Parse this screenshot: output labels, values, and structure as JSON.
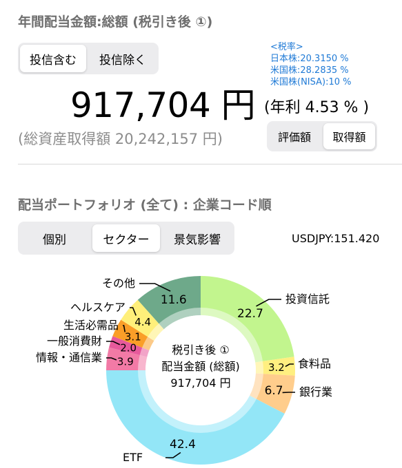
{
  "section1": {
    "title": "年間配当金額:総額 (税引き後 ①)",
    "toggle": [
      "投信含む",
      "投信除く"
    ],
    "toggle_selected": 0,
    "tax_rates": {
      "header": "<税率>",
      "jp": "日本株:20.3150 %",
      "us": "米国株:28.2835 %",
      "us_nisa": "米国株(NISA):10 %"
    },
    "amount": "917,704 円",
    "yield": "(年利 4.53 % )",
    "acquisition": "(総資産取得額 20,242,157 円)",
    "basis_toggle": [
      "評価額",
      "取得額"
    ],
    "basis_selected": 1
  },
  "section2": {
    "title": "配当ポートフォリオ (全て) : 企業コード順",
    "tabs": [
      "個別",
      "セクター",
      "景気影響"
    ],
    "tab_selected": 1,
    "fx_rate": "USDJPY:151.420"
  },
  "chart_data": {
    "type": "pie",
    "donut": true,
    "center_text": [
      "税引き後 ①",
      "配当金額 (総額)",
      "917,704 円"
    ],
    "slices": [
      {
        "label": "投資信託",
        "value": 22.7,
        "display": "22.7",
        "color": "#c2f58e"
      },
      {
        "label": "食料品",
        "value": 3.2,
        "display": "3.2",
        "color": "#ffef80"
      },
      {
        "label": "銀行業",
        "value": 6.7,
        "display": "6.7",
        "color": "#ffcd8c"
      },
      {
        "label": "ETF",
        "value": 42.4,
        "display": "42.4",
        "color": "#93e6f7"
      },
      {
        "label": "情報・通信業",
        "value": 3.9,
        "display": "3.9",
        "color": "#f27aa6"
      },
      {
        "label": "一般消費財",
        "value": 2.0,
        "display": "2.0",
        "color": "#e75a9c"
      },
      {
        "label": "生活必需品",
        "value": 3.1,
        "display": "3.1",
        "color": "#fa9e28"
      },
      {
        "label": "ヘルスケア",
        "value": 4.4,
        "display": "4.4",
        "color": "#ffef7a"
      },
      {
        "label": "その他",
        "value": 11.6,
        "display": "11.6",
        "color": "#6ea98a"
      }
    ]
  }
}
